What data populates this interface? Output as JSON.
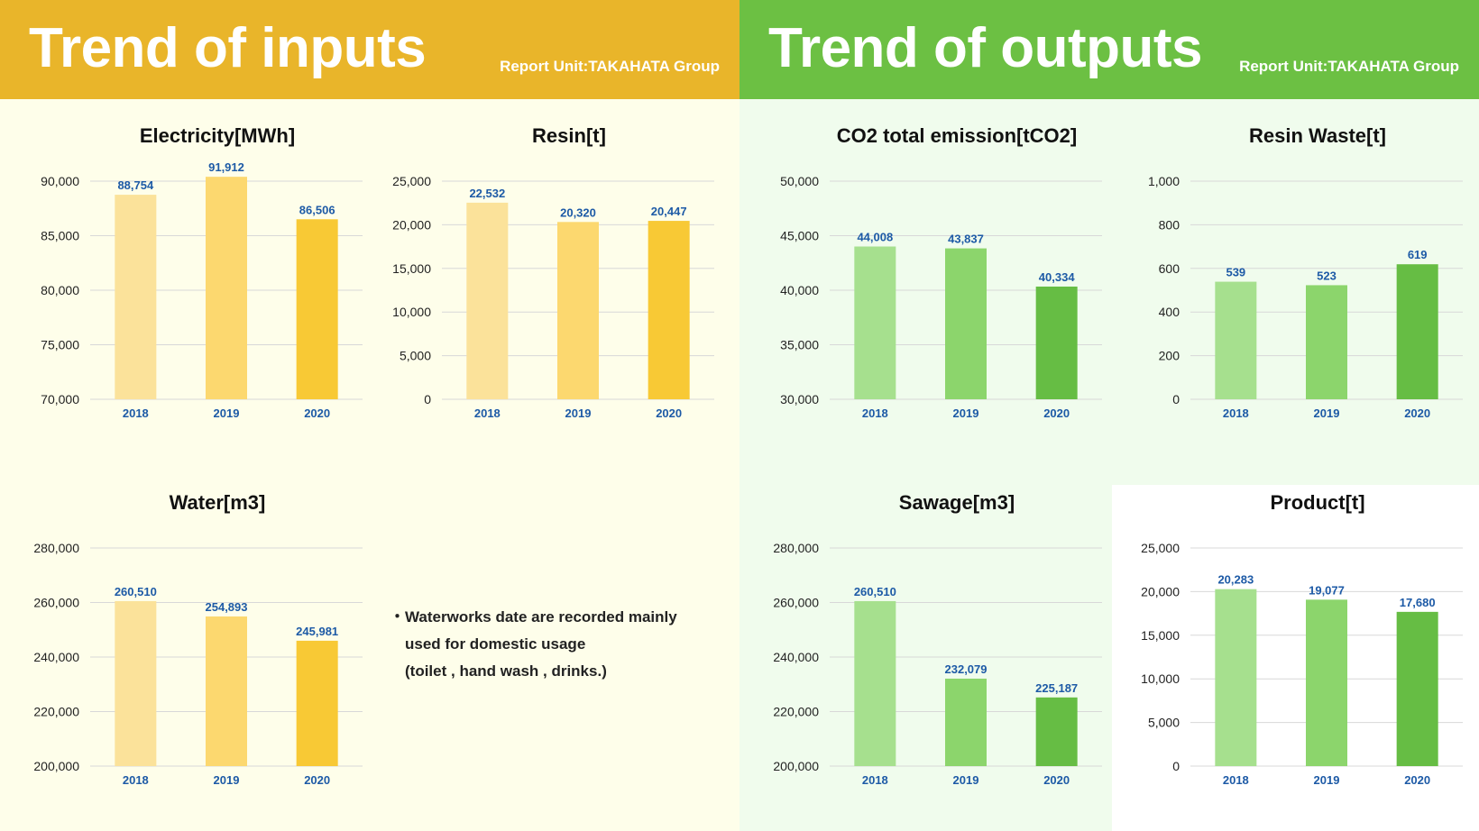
{
  "inputs": {
    "title": "Trend of inputs",
    "report_unit": "Report Unit:TAKAHATA Group",
    "note": [
      "・Waterworks date are recorded mainly",
      "used for domestic usage",
      "(toilet , hand wash , drinks.)"
    ]
  },
  "outputs": {
    "title": "Trend of outputs",
    "report_unit": "Report Unit:TAKAHATA Group"
  },
  "colors": {
    "input_header": "#e9b52a",
    "output_header": "#6cc043",
    "input_bars": [
      "#fbe29a",
      "#fcd86f",
      "#f8c935"
    ],
    "output_bars": [
      "#a6e08e",
      "#8cd56c",
      "#66bd44"
    ],
    "label_blue": "#1d5aa6"
  },
  "chart_data": [
    {
      "id": "electricity",
      "type": "bar",
      "group": "inputs",
      "title": "Electricity[MWh]",
      "categories": [
        "2018",
        "2019",
        "2020"
      ],
      "values": [
        88754,
        91912,
        86506
      ],
      "value_labels": [
        "88,754",
        "91,912",
        "86,506"
      ],
      "ylim": [
        70000,
        90000
      ],
      "yticks": [
        70000,
        75000,
        80000,
        85000,
        90000
      ],
      "ytick_labels": [
        "70,000",
        "75,000",
        "80,000",
        "85,000",
        "90,000"
      ],
      "grid": true
    },
    {
      "id": "resin",
      "type": "bar",
      "group": "inputs",
      "title": "Resin[t]",
      "categories": [
        "2018",
        "2019",
        "2020"
      ],
      "values": [
        22532,
        20320,
        20447
      ],
      "value_labels": [
        "22,532",
        "20,320",
        "20,447"
      ],
      "ylim": [
        0,
        25000
      ],
      "yticks": [
        0,
        5000,
        10000,
        15000,
        20000,
        25000
      ],
      "ytick_labels": [
        "0",
        "5,000",
        "10,000",
        "15,000",
        "20,000",
        "25,000"
      ],
      "grid": true
    },
    {
      "id": "water",
      "type": "bar",
      "group": "inputs",
      "title": "Water[m3]",
      "categories": [
        "2018",
        "2019",
        "2020"
      ],
      "values": [
        260510,
        254893,
        245981
      ],
      "value_labels": [
        "260,510",
        "254,893",
        "245,981"
      ],
      "ylim": [
        200000,
        280000
      ],
      "yticks": [
        200000,
        220000,
        240000,
        260000,
        280000
      ],
      "ytick_labels": [
        "200,000",
        "220,000",
        "240,000",
        "260,000",
        "280,000"
      ],
      "grid": true
    },
    {
      "id": "co2",
      "type": "bar",
      "group": "outputs",
      "title": "CO2 total emission[tCO2]",
      "categories": [
        "2018",
        "2019",
        "2020"
      ],
      "values": [
        44008,
        43837,
        40334
      ],
      "value_labels": [
        "44,008",
        "43,837",
        "40,334"
      ],
      "ylim": [
        30000,
        50000
      ],
      "yticks": [
        30000,
        35000,
        40000,
        45000,
        50000
      ],
      "ytick_labels": [
        "30,000",
        "35,000",
        "40,000",
        "45,000",
        "50,000"
      ],
      "grid": true
    },
    {
      "id": "resin_waste",
      "type": "bar",
      "group": "outputs",
      "title": "Resin Waste[t]",
      "categories": [
        "2018",
        "2019",
        "2020"
      ],
      "values": [
        539,
        523,
        619
      ],
      "value_labels": [
        "539",
        "523",
        "619"
      ],
      "ylim": [
        0,
        1000
      ],
      "yticks": [
        0,
        200,
        400,
        600,
        800,
        1000
      ],
      "ytick_labels": [
        "0",
        "200",
        "400",
        "600",
        "800",
        "1,000"
      ],
      "grid": true
    },
    {
      "id": "sewage",
      "type": "bar",
      "group": "outputs",
      "title": "Sawage[m3]",
      "categories": [
        "2018",
        "2019",
        "2020"
      ],
      "values": [
        260510,
        232079,
        225187
      ],
      "value_labels": [
        "260,510",
        "232,079",
        "225,187"
      ],
      "ylim": [
        200000,
        280000
      ],
      "yticks": [
        200000,
        220000,
        240000,
        260000,
        280000
      ],
      "ytick_labels": [
        "200,000",
        "220,000",
        "240,000",
        "260,000",
        "280,000"
      ],
      "grid": true
    },
    {
      "id": "product",
      "type": "bar",
      "group": "outputs",
      "title": "Product[t]",
      "categories": [
        "2018",
        "2019",
        "2020"
      ],
      "values": [
        20283,
        19077,
        17680
      ],
      "value_labels": [
        "20,283",
        "19,077",
        "17,680"
      ],
      "ylim": [
        0,
        25000
      ],
      "yticks": [
        0,
        5000,
        10000,
        15000,
        20000,
        25000
      ],
      "ytick_labels": [
        "0",
        "5,000",
        "10,000",
        "15,000",
        "20,000",
        "25,000"
      ],
      "grid": true
    }
  ]
}
